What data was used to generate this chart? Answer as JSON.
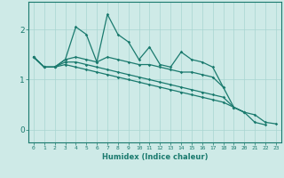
{
  "xlabel": "Humidex (Indice chaleur)",
  "x": [
    0,
    1,
    2,
    3,
    4,
    5,
    6,
    7,
    8,
    9,
    10,
    11,
    12,
    13,
    14,
    15,
    16,
    17,
    18,
    19,
    20,
    21,
    22,
    23
  ],
  "line1": [
    1.45,
    1.25,
    1.25,
    1.4,
    2.05,
    1.9,
    1.35,
    2.3,
    1.9,
    1.75,
    1.4,
    1.65,
    1.3,
    1.25,
    1.55,
    1.4,
    1.35,
    1.25,
    0.85,
    null,
    null,
    null,
    null,
    null
  ],
  "line2": [
    1.45,
    1.25,
    1.25,
    1.4,
    1.45,
    1.4,
    1.35,
    1.45,
    1.4,
    1.35,
    1.3,
    1.3,
    1.25,
    1.2,
    1.15,
    1.15,
    1.1,
    1.05,
    0.85,
    0.45,
    0.35,
    null,
    null,
    null
  ],
  "line3": [
    1.45,
    1.25,
    1.25,
    1.35,
    1.35,
    1.3,
    1.25,
    1.2,
    1.15,
    1.1,
    1.05,
    1.0,
    0.95,
    0.9,
    0.85,
    0.8,
    0.75,
    0.7,
    0.65,
    0.45,
    0.35,
    0.15,
    0.1,
    null
  ],
  "line4": [
    1.45,
    1.25,
    1.25,
    1.3,
    1.25,
    1.2,
    1.15,
    1.1,
    1.05,
    1.0,
    0.95,
    0.9,
    0.85,
    0.8,
    0.75,
    0.7,
    0.65,
    0.6,
    0.55,
    0.45,
    0.35,
    0.3,
    0.15,
    0.12
  ],
  "color": "#1a7a6e",
  "bg_color": "#ceeae7",
  "grid_color": "#a8d5d1",
  "ylim": [
    -0.25,
    2.55
  ],
  "xlim": [
    -0.5,
    23.5
  ],
  "yticks": [
    0,
    1,
    2
  ],
  "xtick_fontsize": 4.5,
  "ytick_fontsize": 6.5,
  "xlabel_fontsize": 6.0
}
